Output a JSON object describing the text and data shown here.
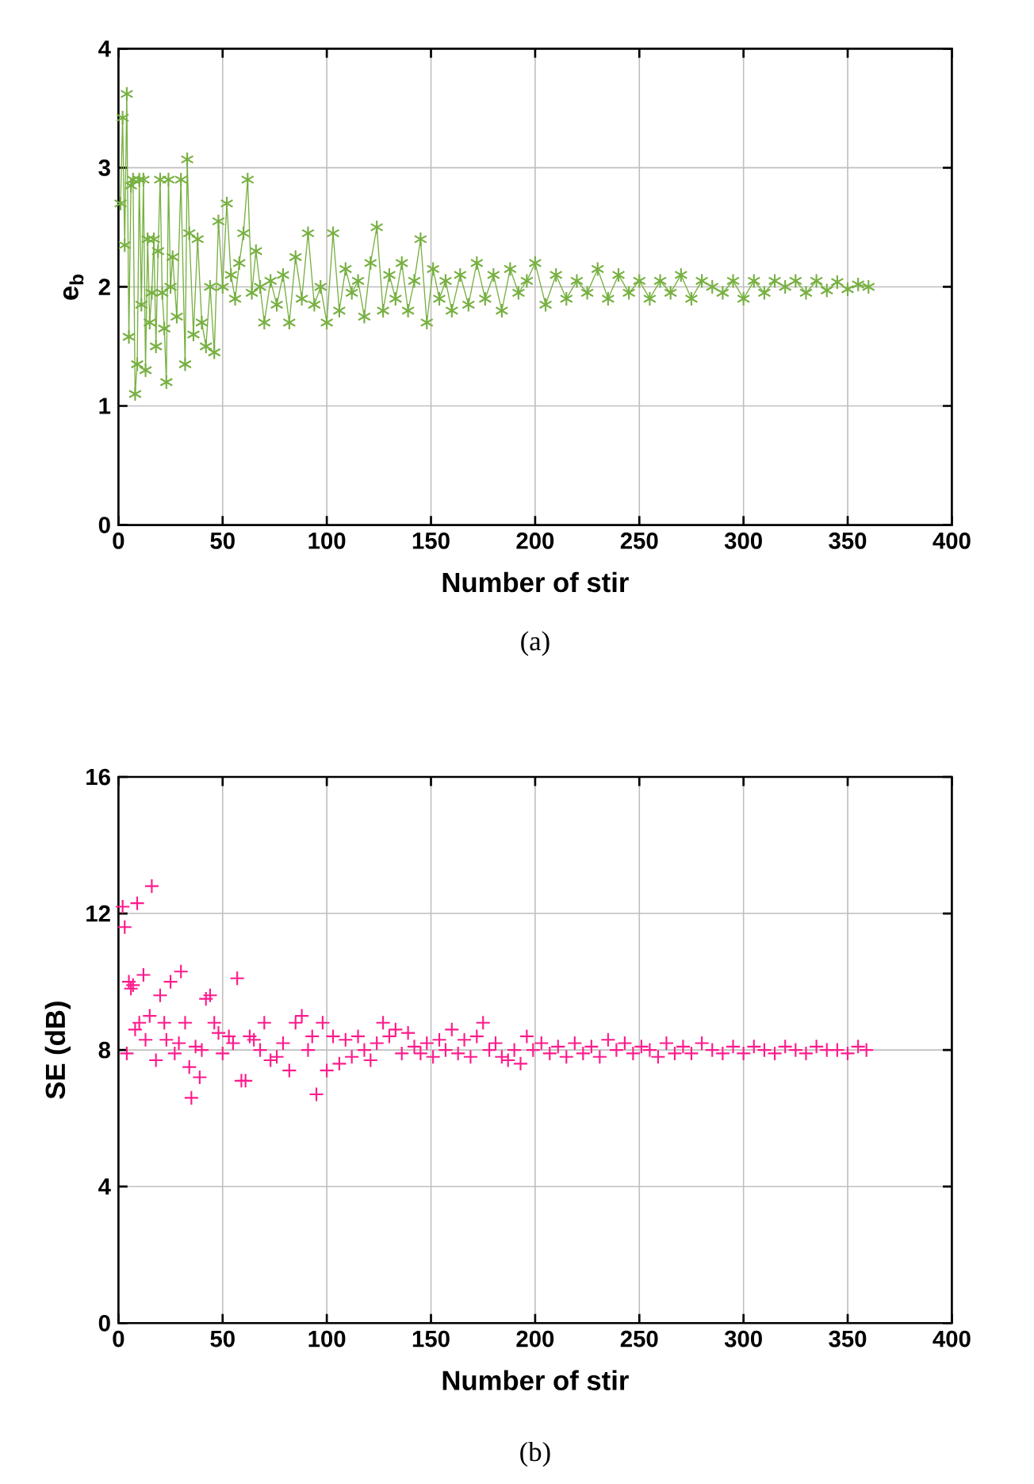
{
  "chart_data": [
    {
      "type": "line",
      "xlabel": "Number of stir",
      "ylabel": "e$_{b}$",
      "annotations": [
        "(a)"
      ],
      "color": "#77b041",
      "marker": "cross",
      "line_style": "solid",
      "grid": true,
      "xlim": [
        0,
        400
      ],
      "xticks": [
        0,
        50,
        100,
        150,
        200,
        250,
        300,
        350,
        400
      ],
      "ylim": [
        0,
        4
      ],
      "yticks": [
        0,
        1,
        2,
        3,
        4
      ],
      "x": [
        1,
        2,
        3,
        4,
        5,
        6,
        7,
        8,
        9,
        10,
        11,
        12,
        13,
        14,
        15,
        16,
        17,
        18,
        19,
        20,
        21,
        22,
        23,
        24,
        25,
        26,
        28,
        30,
        32,
        33,
        34,
        36,
        38,
        40,
        42,
        44,
        46,
        48,
        50,
        52,
        54,
        56,
        58,
        60,
        62,
        64,
        66,
        68,
        70,
        73,
        76,
        79,
        82,
        85,
        88,
        91,
        94,
        97,
        100,
        103,
        106,
        109,
        112,
        115,
        118,
        121,
        124,
        127,
        130,
        133,
        136,
        139,
        142,
        145,
        148,
        151,
        154,
        157,
        160,
        164,
        168,
        172,
        176,
        180,
        184,
        188,
        192,
        196,
        200,
        205,
        210,
        215,
        220,
        225,
        230,
        235,
        240,
        245,
        250,
        255,
        260,
        265,
        270,
        275,
        280,
        285,
        290,
        295,
        300,
        305,
        310,
        315,
        320,
        325,
        330,
        335,
        340,
        345,
        350,
        355,
        360
      ],
      "values": [
        2.7,
        3.42,
        2.35,
        3.62,
        1.58,
        2.85,
        2.9,
        1.1,
        1.35,
        2.9,
        1.85,
        2.9,
        1.3,
        2.4,
        1.7,
        1.95,
        2.4,
        1.5,
        2.3,
        2.9,
        1.95,
        1.65,
        1.2,
        2.9,
        2.0,
        2.25,
        1.75,
        2.9,
        1.35,
        3.07,
        2.45,
        1.6,
        2.4,
        1.7,
        1.5,
        2.0,
        1.45,
        2.55,
        2.0,
        2.7,
        2.1,
        1.9,
        2.2,
        2.45,
        2.9,
        1.95,
        2.3,
        2.0,
        1.7,
        2.05,
        1.85,
        2.1,
        1.7,
        2.25,
        1.9,
        2.45,
        1.85,
        2.0,
        1.7,
        2.45,
        1.8,
        2.15,
        1.95,
        2.05,
        1.75,
        2.2,
        2.5,
        1.8,
        2.1,
        1.9,
        2.2,
        1.8,
        2.05,
        2.4,
        1.7,
        2.15,
        1.9,
        2.05,
        1.8,
        2.1,
        1.85,
        2.2,
        1.9,
        2.1,
        1.8,
        2.15,
        1.95,
        2.05,
        2.2,
        1.85,
        2.1,
        1.9,
        2.05,
        1.95,
        2.15,
        1.9,
        2.1,
        1.95,
        2.05,
        1.9,
        2.05,
        1.95,
        2.1,
        1.9,
        2.05,
        2.0,
        1.95,
        2.05,
        1.9,
        2.05,
        1.95,
        2.05,
        2.0,
        2.05,
        1.95,
        2.05,
        1.97,
        2.04,
        1.98,
        2.02,
        2.0
      ]
    },
    {
      "type": "scatter",
      "xlabel": "Number of stir",
      "ylabel": "SE (dB)",
      "annotations": [
        "(b)"
      ],
      "color": "#ff1a8c",
      "marker": "cross",
      "grid": true,
      "xlim": [
        0,
        400
      ],
      "xticks": [
        0,
        50,
        100,
        150,
        200,
        250,
        300,
        350,
        400
      ],
      "ylim": [
        0,
        16
      ],
      "yticks": [
        0,
        4,
        8,
        12,
        16
      ],
      "x": [
        2,
        3,
        4,
        5,
        6,
        7,
        8,
        9,
        10,
        12,
        13,
        15,
        16,
        18,
        20,
        22,
        23,
        25,
        27,
        29,
        30,
        32,
        34,
        35,
        37,
        39,
        40,
        42,
        44,
        46,
        48,
        50,
        53,
        55,
        57,
        59,
        61,
        63,
        65,
        68,
        70,
        73,
        76,
        79,
        82,
        85,
        88,
        91,
        93,
        95,
        98,
        100,
        103,
        106,
        109,
        112,
        115,
        118,
        121,
        124,
        127,
        130,
        133,
        136,
        139,
        142,
        145,
        148,
        151,
        154,
        157,
        160,
        163,
        166,
        169,
        172,
        175,
        178,
        181,
        184,
        187,
        190,
        193,
        196,
        199,
        203,
        207,
        211,
        215,
        219,
        223,
        227,
        231,
        235,
        239,
        243,
        247,
        251,
        255,
        259,
        263,
        267,
        271,
        275,
        280,
        285,
        290,
        295,
        300,
        305,
        310,
        315,
        320,
        325,
        330,
        335,
        340,
        345,
        350,
        355,
        359
      ],
      "values": [
        12.2,
        11.6,
        7.9,
        10.0,
        9.8,
        9.9,
        8.6,
        12.3,
        8.8,
        10.2,
        8.3,
        9.0,
        12.8,
        7.7,
        9.6,
        8.8,
        8.3,
        10.0,
        7.9,
        8.2,
        10.3,
        8.8,
        7.5,
        6.6,
        8.1,
        7.2,
        8.0,
        9.5,
        9.6,
        8.8,
        8.5,
        7.9,
        8.4,
        8.2,
        10.1,
        7.1,
        7.1,
        8.4,
        8.3,
        8.0,
        8.8,
        7.7,
        7.8,
        8.2,
        7.4,
        8.8,
        9.0,
        8.0,
        8.4,
        6.7,
        8.8,
        7.4,
        8.4,
        7.6,
        8.3,
        7.8,
        8.4,
        8.0,
        7.7,
        8.2,
        8.8,
        8.4,
        8.6,
        7.9,
        8.5,
        8.1,
        7.9,
        8.2,
        7.8,
        8.3,
        8.0,
        8.6,
        7.9,
        8.3,
        7.8,
        8.4,
        8.8,
        8.0,
        8.2,
        7.8,
        7.7,
        8.0,
        7.6,
        8.4,
        8.0,
        8.2,
        7.9,
        8.1,
        7.8,
        8.2,
        7.9,
        8.1,
        7.8,
        8.3,
        8.0,
        8.2,
        7.9,
        8.1,
        8.0,
        7.8,
        8.2,
        7.9,
        8.1,
        7.9,
        8.2,
        8.0,
        7.9,
        8.1,
        7.9,
        8.1,
        8.0,
        7.9,
        8.1,
        8.0,
        7.9,
        8.1,
        8.0,
        8.0,
        7.9,
        8.1,
        8.0
      ]
    }
  ]
}
